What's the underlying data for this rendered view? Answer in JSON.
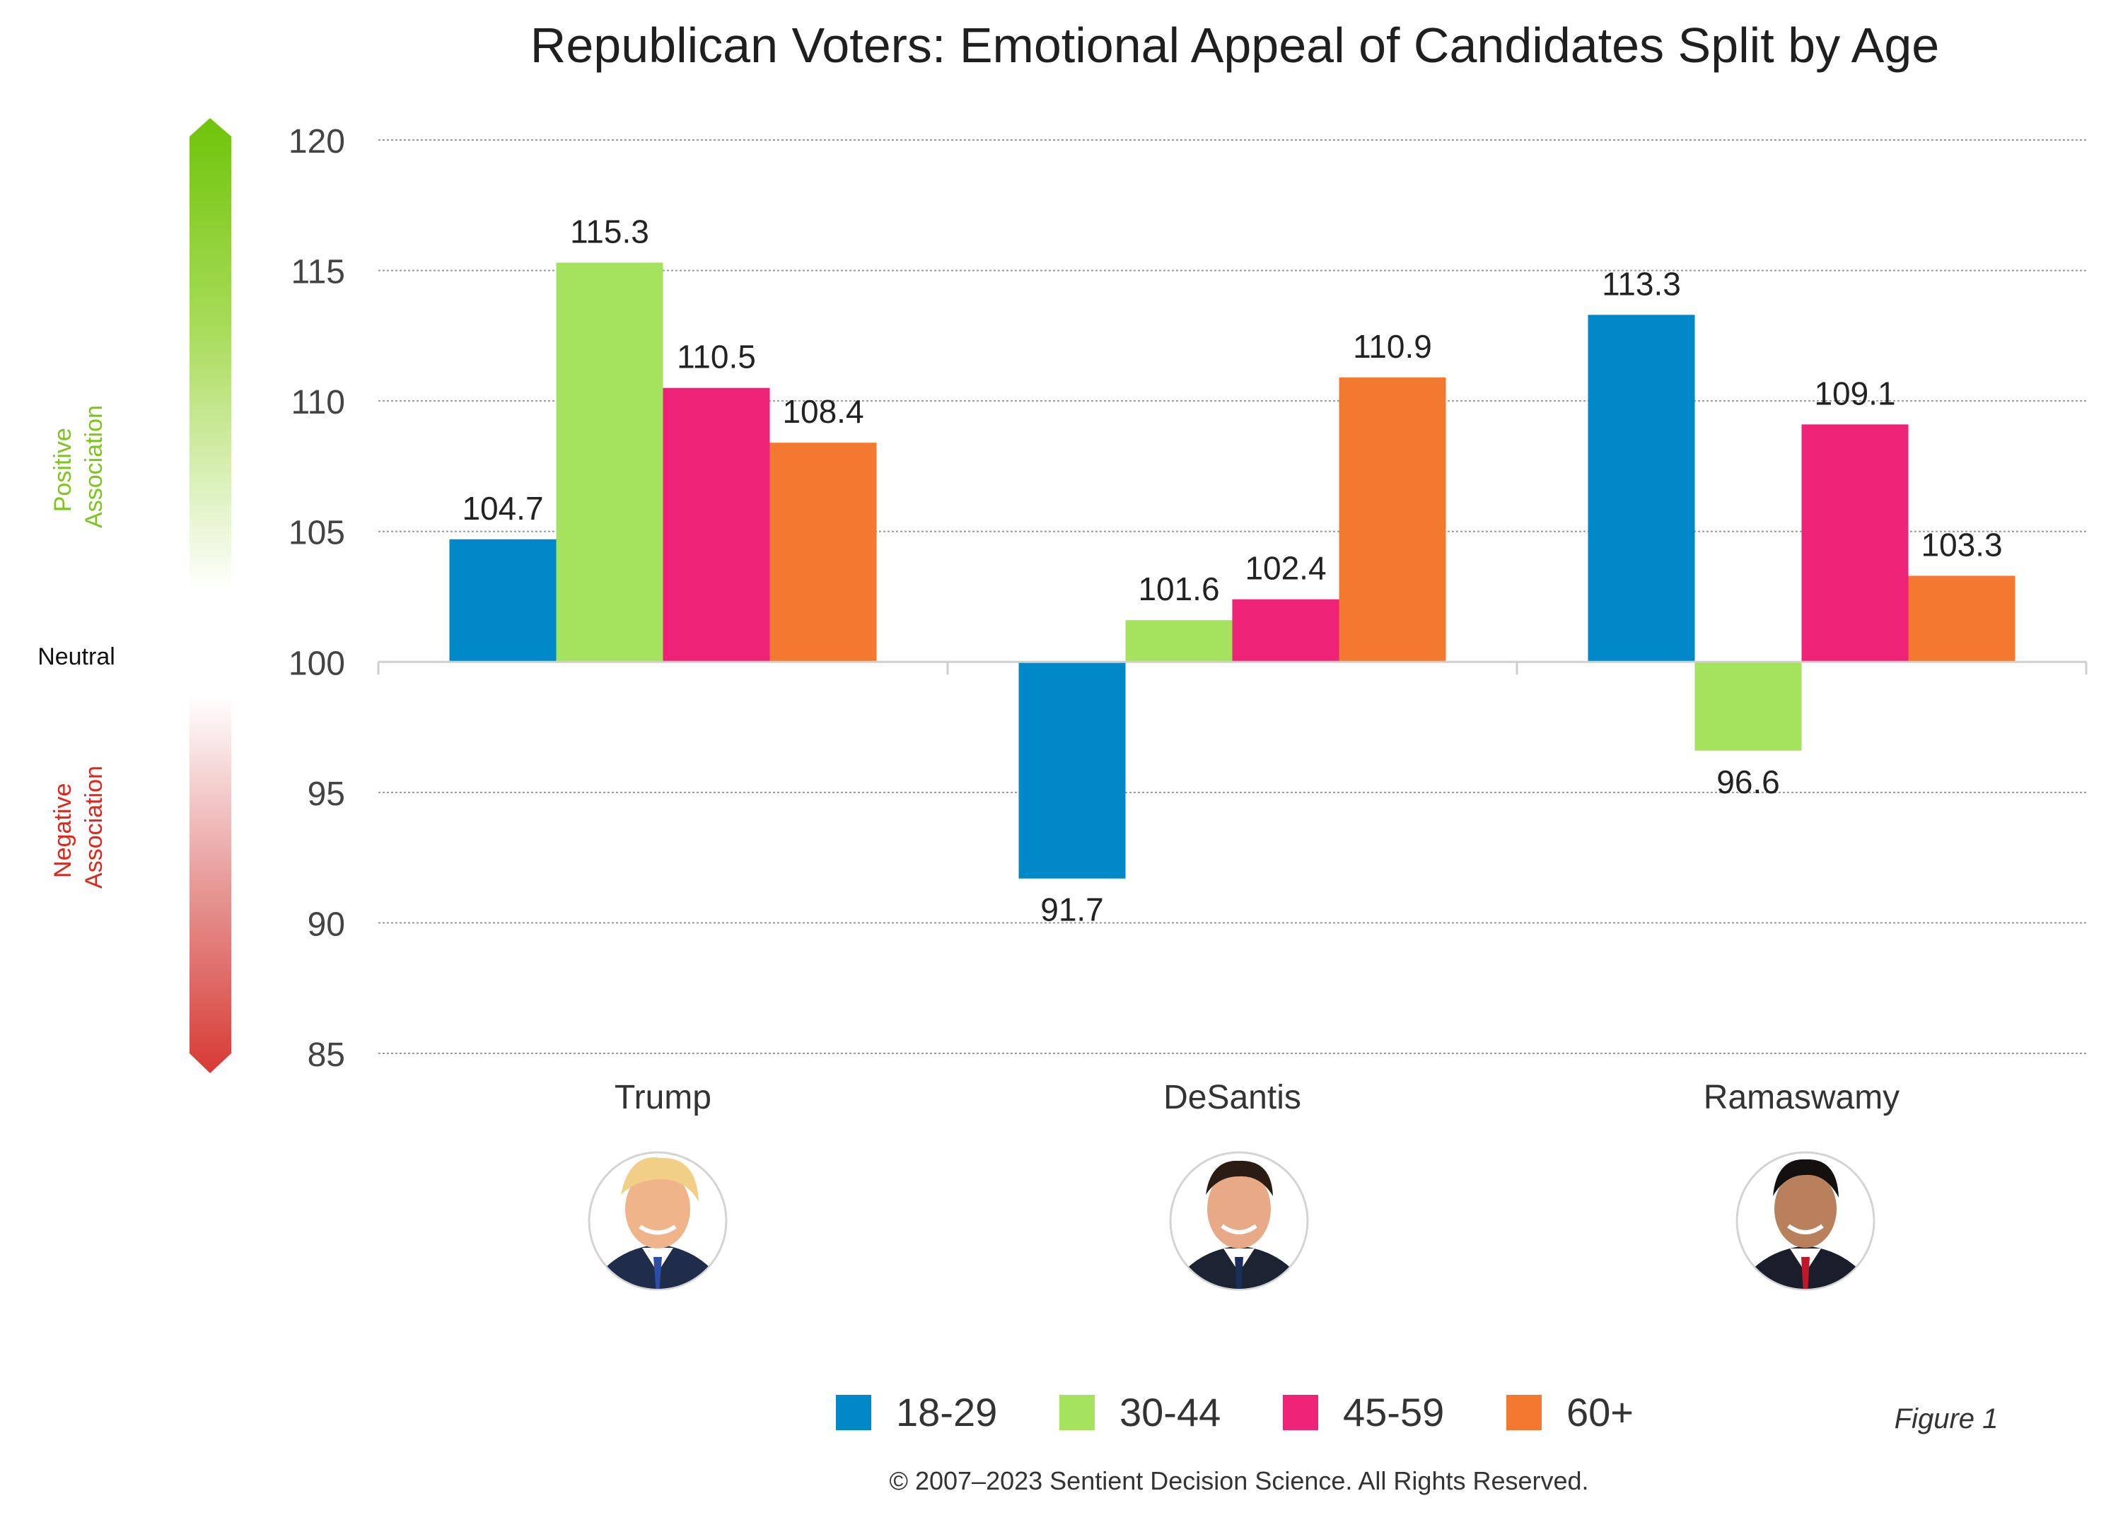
{
  "chart_data": {
    "type": "bar",
    "title": "Republican Voters: Emotional Appeal of Candidates Split by Age",
    "categories": [
      "Trump",
      "DeSantis",
      "Ramaswamy"
    ],
    "baseline": 100,
    "ylim": [
      85,
      120
    ],
    "yticks": [
      120,
      115,
      110,
      105,
      100,
      95,
      90,
      85
    ],
    "grid": true,
    "legend_position": "bottom",
    "series": [
      {
        "name": "18-29",
        "color": "#0088c9",
        "values": [
          104.7,
          91.7,
          113.3
        ]
      },
      {
        "name": "30-44",
        "color": "#a5e35f",
        "values": [
          115.3,
          101.6,
          96.6
        ]
      },
      {
        "name": "45-59",
        "color": "#ee2277",
        "values": [
          110.5,
          102.4,
          109.1
        ]
      },
      {
        "name": "60+",
        "color": "#f37830",
        "values": [
          108.4,
          110.9,
          103.3
        ]
      }
    ],
    "scale": {
      "positive_label": [
        "Positive",
        "Association"
      ],
      "neutral_label": "Neutral",
      "negative_label": [
        "Negative",
        "Association"
      ],
      "positive_color": "#7cc61a",
      "negative_color": "#e0251b"
    },
    "figure_label": "Figure 1",
    "copyright": "© 2007–2023 Sentient Decision Science. All Rights Reserved."
  }
}
